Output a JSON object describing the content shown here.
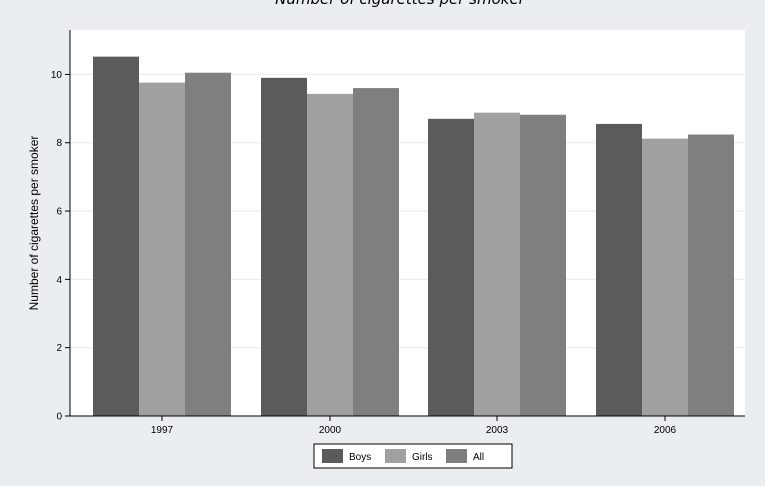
{
  "chart_data": {
    "type": "bar",
    "title": "Number of cigarettes per smoker",
    "xlabel": "",
    "ylabel": "Number of cigarettes per smoker",
    "categories": [
      "1997",
      "2000",
      "2003",
      "2006"
    ],
    "series": [
      {
        "name": "Boys",
        "values": [
          10.52,
          9.9,
          8.7,
          8.55
        ],
        "color": "#5b5b5b"
      },
      {
        "name": "Girls",
        "values": [
          9.76,
          9.43,
          8.88,
          8.12
        ],
        "color": "#a0a0a0"
      },
      {
        "name": "All",
        "values": [
          10.05,
          9.6,
          8.82,
          8.24
        ],
        "color": "#7f7f7f"
      }
    ],
    "ylim": [
      0,
      11.3
    ],
    "yticks": [
      0,
      2,
      4,
      6,
      8,
      10
    ],
    "grid": true,
    "legend_position": "bottom-center",
    "background_color": "#eaeef0",
    "plot_background_color": "#ffffff"
  }
}
